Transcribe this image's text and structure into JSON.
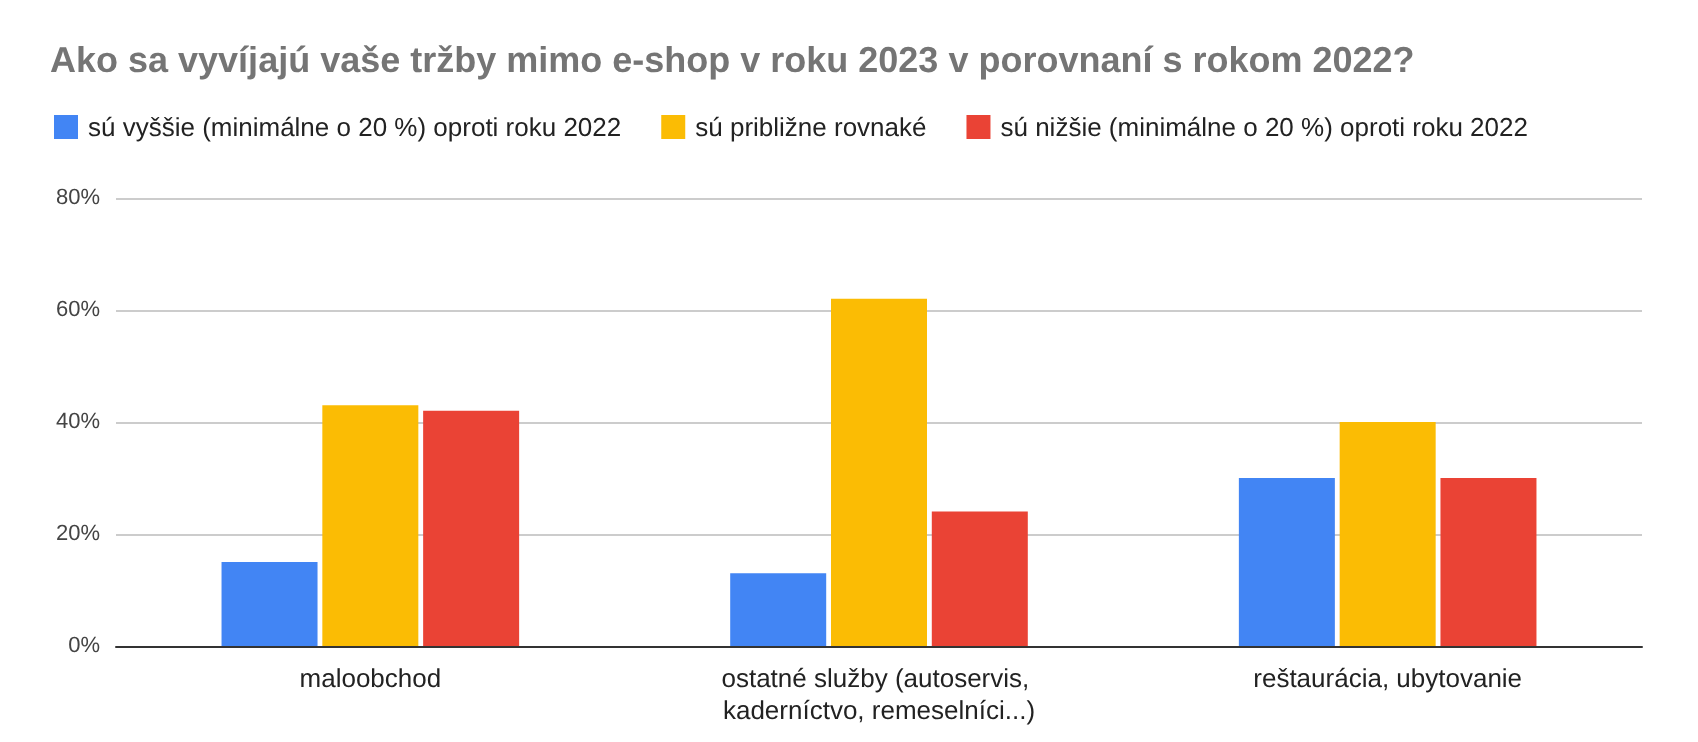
{
  "chart_data": {
    "type": "bar",
    "title": "Ako sa vyvíjajú vaše tržby mimo e-shop v roku 2023 v porovnaní s rokom 2022?",
    "categories": [
      "maloobchod",
      "ostatné služby (autoservis, kaderníctvo, remeselníci...)",
      "reštaurácia, ubytovanie"
    ],
    "series": [
      {
        "name": "sú vyššie (minimálne o 20 %) oproti roku 2022",
        "color": "#4285f4",
        "values": [
          15,
          13,
          30
        ]
      },
      {
        "name": "sú približne rovnaké",
        "color": "#fbbc04",
        "values": [
          43,
          62,
          40
        ]
      },
      {
        "name": "sú nižšie (minimálne o 20 %) oproti roku 2022",
        "color": "#ea4335",
        "values": [
          42,
          24,
          30
        ]
      }
    ],
    "ylim": [
      0,
      80
    ],
    "yticks": [
      {
        "value": 0,
        "label": "0%"
      },
      {
        "value": 20,
        "label": "20%"
      },
      {
        "value": 40,
        "label": "40%"
      },
      {
        "value": 60,
        "label": "60%"
      },
      {
        "value": 80,
        "label": "80%"
      }
    ],
    "grid": "y",
    "legend": "top left"
  }
}
